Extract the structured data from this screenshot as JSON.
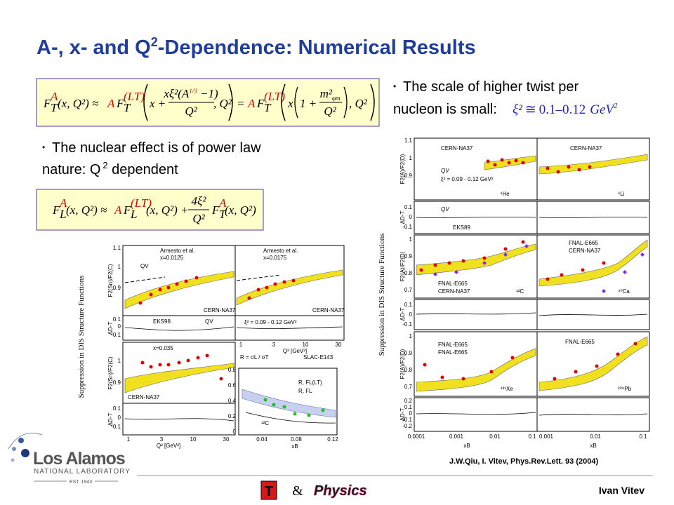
{
  "title": {
    "main": "A-, x- and Q",
    "sup": "2",
    "rest": "-Dependence: Numerical Results"
  },
  "equation_1": {
    "lhs_f": "F",
    "lhs_sub": "T",
    "lhs_sup": "A",
    "lhs_args": "(x, Q²) ≈",
    "a1": "A",
    "f1": "F",
    "f1_sub": "T",
    "f1_sup": "(LT)",
    "x_plus": "x +",
    "num_a": "xξ²(A",
    "num_sup": "1/3",
    "num_b": " −1)",
    "den": "Q²",
    "arg_q": ", Q²",
    "eq": "=",
    "a2": "A",
    "f2": "F",
    "f2_sub": "T",
    "f2_sup": "(LT)",
    "x2": "x",
    "one_plus": "1 +",
    "num2": "m²",
    "num2_sub": "φm",
    "den2": "Q²",
    "arg_q2": ", Q²"
  },
  "equation_2": {
    "lhs_f": "F",
    "lhs_sub": "L",
    "lhs_sup": "A",
    "lhs_args": "(x, Q²) ≈",
    "a1": "A",
    "f1": "F",
    "f1_sub": "L",
    "f1_sup": "(LT)",
    "args1": "(x, Q²) +",
    "num": "4ξ²",
    "den": "Q²",
    "f2": "F",
    "f2_sub": "T",
    "f2_sup": "A",
    "args2": "(x, Q²)"
  },
  "bullets": [
    {
      "text_1": "The scale of higher twist per",
      "text_2": "nucleon is small:",
      "formula_a": "ξ²",
      "formula_b": "≅",
      "formula_c": "0.1–0.12",
      "formula_d": "GeV",
      "formula_sup": "2"
    },
    {
      "text_1": "The nuclear effect is of power law",
      "text_2": "nature: Q",
      "sup": "2",
      "text_3": " dependent"
    }
  ],
  "figure_left": {
    "caption": "Suppression in DIS Structure Functions",
    "ylabel_ratio": [
      "F2(Sn)/F2(C)",
      "F2(Sn)/F2(C)"
    ],
    "ylabel_delta": [
      "ΔD-T",
      "ΔD-T"
    ],
    "yticks_top": [
      "1.1",
      "1",
      "0.9"
    ],
    "yticks_delta": [
      "0.1",
      "0",
      "-0.1"
    ],
    "yticks_bottom": [
      "1",
      "0.9"
    ],
    "yticks_delta2": [
      "0.1",
      "0",
      "-0.1"
    ],
    "xticks": [
      "1",
      "3",
      "10",
      "30"
    ],
    "xticks_mid": [
      "1",
      "3",
      "10",
      "30"
    ],
    "labels": [
      "Armesto et al.",
      "x=0.0125",
      "QV",
      "Armesto et al.",
      "x=0.0175",
      "CERN-NA37",
      "CERN-NA37",
      "EKS98",
      "QV",
      "ξ² = 0.09 - 0.12 GeV²",
      "x=0.035",
      "CERN-NA37"
    ],
    "xlabel_q2": [
      "Q² [GeV²]",
      "Q² [GeV²]"
    ],
    "slac": {
      "r_def": "R = σL / σT",
      "exp": "SLAC-E143",
      "legend_1": "R, FL(LT)",
      "legend_2": "R, FL",
      "nucleus": "¹²C",
      "yticks": [
        "0.8",
        "0.6",
        "0.4",
        "0.2",
        "0"
      ],
      "xticks": [
        "0.04",
        "0.08",
        "0.12"
      ],
      "xlabel": "xB"
    }
  },
  "figure_right": {
    "caption": "Suppression in DIS Structure Functions",
    "ylabel_ratio": [
      "F2(A)/F2(D)",
      "F2(A)/F2(D)",
      "F2(A)/F2(D)"
    ],
    "ylabel_delta": [
      "ΔD-T",
      "ΔD-T",
      "ΔD-T"
    ],
    "yticks_1": [
      "1.1",
      "1",
      "0.9"
    ],
    "yticks_d1": [
      "0.1",
      "0",
      "-0.1"
    ],
    "yticks_2": [
      "1",
      "0.9",
      "0.8",
      "0.7"
    ],
    "yticks_d2": [
      "0.1",
      "0",
      "-0.1"
    ],
    "yticks_3": [
      "1",
      "0.9",
      "0.8",
      "0.7"
    ],
    "yticks_d3": [
      "0.2",
      "0.1",
      "0",
      "-0.1",
      "-0.2"
    ],
    "xticks_left": [
      "0.0001",
      "0.001",
      "0.01",
      "0.1"
    ],
    "xticks_right": [
      "0.001",
      "0.01",
      "0.1"
    ],
    "xlabel": [
      "xB",
      "xB"
    ],
    "labels": [
      "CERN-NA37",
      "CERN-NA37",
      "QV",
      "ξ² = 0.09 - 0.12 GeV²",
      "⁴He",
      "⁶Li",
      "QV",
      "EKS89",
      "FNAL-E665",
      "CERN-NA37",
      "FNAL-E665",
      "CERN-NA37",
      "¹²C",
      "⁴⁰Ca",
      "FNAL-E665",
      "FNAL-E665",
      "¹³¹Xe",
      "FNAL-E665",
      "²⁰⁸Pb"
    ]
  },
  "citation": "J.W.Qiu, I. Vitev, Phys.Rev.Lett. 93 (2004)",
  "logo": {
    "name": "Los Alamos",
    "sub": "NATIONAL LABORATORY",
    "est": "EST. 1943"
  },
  "footer": {
    "t_logo": "T",
    "amp": "&",
    "physics": "Physics",
    "author": "Ivan Vitev"
  }
}
